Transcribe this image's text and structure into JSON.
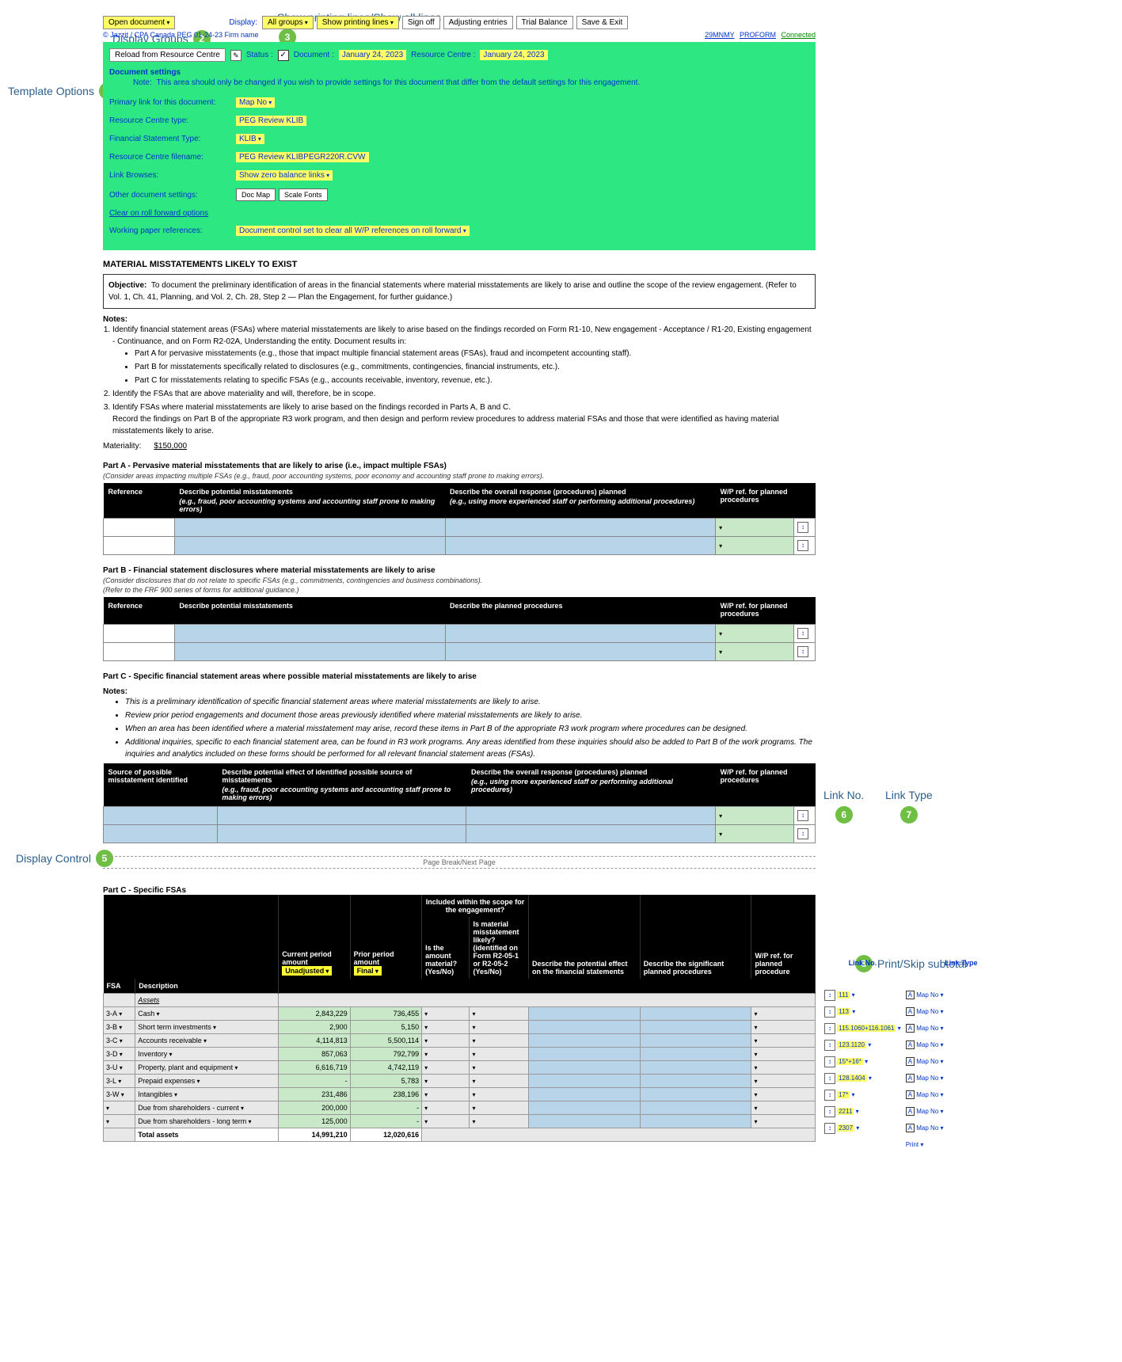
{
  "annotations": {
    "a1": "Template Options",
    "a2": "Display Groups",
    "a3": "Show printing lines/Show all lines",
    "a4": "Financial Statement Type:",
    "a5": "Display Control",
    "a6": "Link No.",
    "a7": "Link Type",
    "a8": "Print/Skip subtotal"
  },
  "toolbar": {
    "open_doc": "Open document",
    "display_label": "Display:",
    "display_val": "All groups",
    "show_lines": "Show printing lines",
    "sign_off": "Sign off",
    "adjusting": "Adjusting entries",
    "trial_balance": "Trial Balance",
    "save_exit": "Save & Exit",
    "sub_line": "© Jazzit / CPA Canada PEG 01-24-23 Firm name",
    "right1": "29MNMY",
    "right2": "PROFORM",
    "right3": "Connected"
  },
  "green": {
    "reload": "Reload from Resource Centre",
    "status": "Status :",
    "document": "Document :",
    "doc_date": "January 24, 2023",
    "rc": "Resource Centre :",
    "rc_date": "January 24, 2023",
    "doc_settings": "Document settings",
    "note_label": "Note:",
    "note_text": "This area should only be changed if you wish to provide settings for this document that differ from the default settings for this engagement.",
    "primary_link": "Primary link for this document:",
    "primary_link_val": "Map No",
    "rc_type": "Resource Centre type:",
    "rc_type_val": "PEG Review KLIB",
    "fs_type": "Financial Statement Type:",
    "fs_type_val": "KLIB",
    "rc_filename": "Resource Centre filename:",
    "rc_filename_val": "PEG Review KLIBPEGR220R.CVW",
    "link_browses": "Link Browses:",
    "link_browses_val": "Show zero balance links",
    "other_settings": "Other document settings:",
    "doc_map": "Doc Map",
    "scale_fonts": "Scale Fonts",
    "clear_rf": "Clear on roll forward options",
    "wp_ref": "Working paper references:",
    "wp_ref_val": "Document control set to clear all W/P references on roll forward"
  },
  "mat": {
    "title": "MATERIAL MISSTATEMENTS LIKELY TO EXIST",
    "obj_label": "Objective:",
    "obj_text": "To document the preliminary identification of areas in the financial statements where material misstatements are likely to arise and outline the scope of the review engagement. (Refer to Vol. 1, Ch. 41, Planning, and Vol. 2, Ch. 28, Step 2 — Plan the Engagement, for further guidance.)",
    "notes_label": "Notes:",
    "n1": "Identify financial statement areas (FSAs) where material misstatements are likely to arise based on the findings recorded on Form R1-10, New engagement - Acceptance / R1-20, Existing engagement - Continuance, and on Form R2-02A, Understanding the entity. Document results in:",
    "n1a": "Part A for pervasive misstatements (e.g., those that impact multiple financial statement areas (FSAs), fraud and incompetent accounting staff).",
    "n1b": "Part B for misstatements specifically related to disclosures (e.g., commitments, contingencies, financial instruments, etc.).",
    "n1c": "Part C for misstatements relating to specific FSAs (e.g., accounts receivable, inventory, revenue, etc.).",
    "n2": "Identify the FSAs that are above materiality and will, therefore, be in scope.",
    "n3": "Identify FSAs where material misstatements are likely to arise based on the findings recorded in Parts A, B and C.",
    "n3b": "Record the findings on Part B of the appropriate R3 work program, and then design and perform review procedures to address material FSAs and those that were identified as having material misstatements likely to arise.",
    "mat_label": "Materiality:",
    "mat_val": "$150,000"
  },
  "partA": {
    "title": "Part A - Pervasive material misstatements that are likely to arise (i.e., impact multiple FSAs)",
    "sub": "(Consider areas impacting multiple FSAs (e.g., fraud, poor accounting systems, poor economy and accounting staff prone to making errors).",
    "h1": "Reference",
    "h2_main": "Describe potential misstatements",
    "h2_sub": "(e.g., fraud, poor accounting systems and accounting staff prone to making errors)",
    "h3_main": "Describe the overall response (procedures) planned",
    "h3_sub": "(e.g., using more experienced staff or performing additional procedures)",
    "h4": "W/P ref. for planned procedures"
  },
  "partB": {
    "title": "Part B - Financial statement disclosures where material misstatements are likely to arise",
    "sub1": "(Consider disclosures that do not relate to specific FSAs (e.g., commitments, contingencies and business combinations).",
    "sub2": "(Refer to the FRF 900 series of forms for additional guidance.)",
    "h1": "Reference",
    "h2": "Describe potential misstatements",
    "h3": "Describe the planned procedures",
    "h4": "W/P ref. for planned procedures"
  },
  "partC": {
    "title": "Part C - Specific financial statement areas where possible material misstatements are likely to arise",
    "notes_label": "Notes:",
    "b1": "This is a preliminary identification of specific financial statement areas where material misstatements are likely to arise.",
    "b2": "Review prior period engagements and document those areas previously identified where material misstatements are likely to arise.",
    "b3": "When an area has been identified where a material misstatement may arise, record these items in Part B of the appropriate R3 work program where procedures can be designed.",
    "b4": "Additional inquiries, specific to each financial statement area, can be found in R3 work programs. Any areas identified from these inquiries should also be added to Part B of the work programs. The inquiries and analytics included on these forms should be performed for all relevant financial statement areas (FSAs).",
    "h1": "Source of possible misstatement identified",
    "h2_main": "Describe potential effect of identified possible source of misstatements",
    "h2_sub": "(e.g., fraud, poor accounting systems and accounting staff prone to making errors)",
    "h3_main": "Describe the overall response (procedures) planned",
    "h3_sub": "(e.g., using more experienced staff or performing additional procedures)",
    "h4": "W/P ref. for planned procedures"
  },
  "pagebreak": "Page Break/Next Page",
  "fsa": {
    "title": "Part C - Specific FSAs",
    "hdr_scope": "Included within the scope for the engagement?",
    "hdr_fsa": "FSA",
    "hdr_desc": "Description",
    "hdr_curr": "Current period amount",
    "hdr_curr_v": "Unadjusted",
    "hdr_prior": "Prior period amount",
    "hdr_prior_v": "Final",
    "hdr_mat": "Is the amount material? (Yes/No)",
    "hdr_likely": "Is material misstatement likely? (identified on Form R2-05-1 or R2-05-2 (Yes/No)",
    "hdr_effect": "Describe the potential effect on the financial statements",
    "hdr_sig": "Describe the significant planned procedures",
    "hdr_wp": "W/P ref. for planned procedure",
    "link_no": "Link No.",
    "link_type": "Link Type",
    "assets": "Assets",
    "rows": [
      {
        "fsa": "3-A",
        "desc": "Cash",
        "curr": "2,843,229",
        "prior": "736,455",
        "ln": "111",
        "lt": "Map No"
      },
      {
        "fsa": "3-B",
        "desc": "Short term investments",
        "curr": "2,900",
        "prior": "5,150",
        "ln": "113",
        "lt": "Map No"
      },
      {
        "fsa": "3-C",
        "desc": "Accounts receivable",
        "curr": "4,114,813",
        "prior": "5,500,114",
        "ln": "115.1060+116.1061",
        "lt": "Map No"
      },
      {
        "fsa": "3-D",
        "desc": "Inventory",
        "curr": "857,063",
        "prior": "792,799",
        "ln": "123.1120",
        "lt": "Map No"
      },
      {
        "fsa": "3-U",
        "desc": "Property, plant and equipment",
        "curr": "6,616,719",
        "prior": "4,742,119",
        "ln": "15*+16*",
        "lt": "Map No"
      },
      {
        "fsa": "3-L",
        "desc": "Prepaid expenses",
        "curr": "-",
        "prior": "5,783",
        "ln": "128.1404",
        "lt": "Map No"
      },
      {
        "fsa": "3-W",
        "desc": "Intangibles",
        "curr": "231,486",
        "prior": "238,196",
        "ln": "17*",
        "lt": "Map No"
      },
      {
        "fsa": "",
        "desc": "Due from shareholders - current",
        "curr": "200,000",
        "prior": "-",
        "ln": "2211",
        "lt": "Map No"
      },
      {
        "fsa": "",
        "desc": "Due from shareholders - long term",
        "curr": "125,000",
        "prior": "-",
        "ln": "2307",
        "lt": "Map No"
      }
    ],
    "total_label": "Total assets",
    "total_curr": "14,991,210",
    "total_prior": "12,020,616",
    "print": "Print"
  }
}
